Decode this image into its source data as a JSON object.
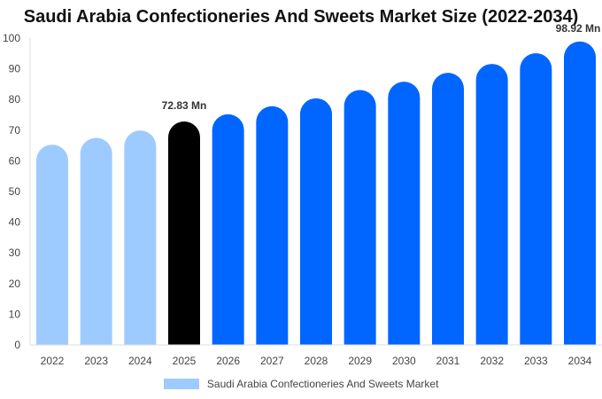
{
  "chart_data": {
    "type": "bar",
    "title": "Saudi Arabia Confectioneries And Sweets Market Size (2022-2034)",
    "categories": [
      "2022",
      "2023",
      "2024",
      "2025",
      "2026",
      "2027",
      "2028",
      "2029",
      "2030",
      "2031",
      "2032",
      "2033",
      "2034"
    ],
    "series": [
      {
        "name": "Saudi Arabia Confectioneries And Sweets Market",
        "values": [
          65.3,
          67.5,
          69.9,
          72.83,
          75.2,
          77.8,
          80.4,
          83.1,
          85.8,
          88.7,
          91.6,
          95.1,
          98.92
        ]
      }
    ],
    "ylim": [
      0,
      100
    ],
    "yticks": [
      0,
      10,
      20,
      30,
      40,
      50,
      60,
      70,
      80,
      90,
      100
    ],
    "grid": false,
    "legend_position": "bottom",
    "colors": {
      "history": "#9ecbff",
      "current": "#000000",
      "forecast": "#0066ff"
    },
    "bar_roles": [
      "history",
      "history",
      "history",
      "current",
      "forecast",
      "forecast",
      "forecast",
      "forecast",
      "forecast",
      "forecast",
      "forecast",
      "forecast",
      "forecast"
    ],
    "data_labels": [
      {
        "category": "2025",
        "text": "72.83 Mn"
      },
      {
        "category": "2034",
        "text": "98.92 Mn"
      }
    ],
    "legend_color": "#9ecbff"
  }
}
